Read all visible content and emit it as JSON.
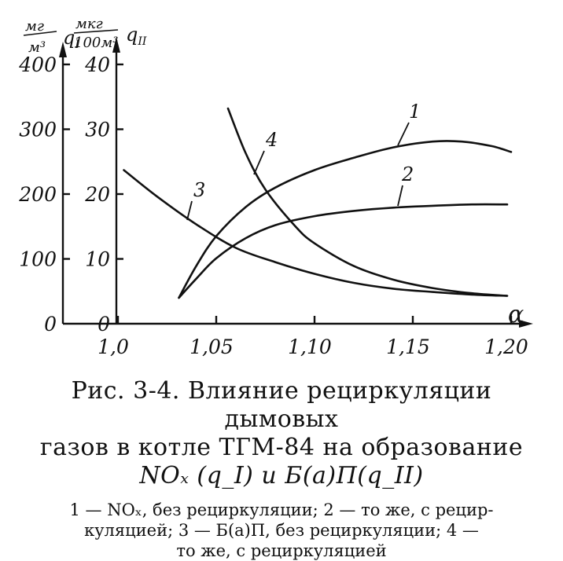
{
  "chart_data": {
    "type": "line",
    "xlabel": "α",
    "x_ticks": [
      "1,0",
      "1,05",
      "1,10",
      "1,15",
      "1,20"
    ],
    "x_tick_values": [
      1.0,
      1.05,
      1.1,
      1.15,
      1.2
    ],
    "xlim": [
      0.965,
      1.21
    ],
    "left_axis": {
      "unit_numerator": "мг",
      "unit_denominator": "м³",
      "label": "q_I",
      "ticks": [
        "0",
        "100",
        "200",
        "300",
        "400"
      ],
      "tick_values": [
        0,
        100,
        200,
        300,
        400
      ],
      "ylim": [
        0,
        400
      ]
    },
    "right_axis": {
      "unit_numerator": "мкг",
      "unit_denominator": "100м³",
      "label": "q_II",
      "ticks": [
        "0",
        "10",
        "20",
        "30",
        "40"
      ],
      "tick_values": [
        0,
        10,
        20,
        30,
        40
      ],
      "ylim": [
        0,
        40
      ]
    },
    "series": [
      {
        "name": "1",
        "axis": "left",
        "x": [
          1.031,
          1.04,
          1.05,
          1.065,
          1.08,
          1.1,
          1.12,
          1.14,
          1.16,
          1.175,
          1.19,
          1.2
        ],
        "y": [
          40,
          90,
          135,
          180,
          210,
          237,
          256,
          272,
          281,
          281,
          274,
          265
        ]
      },
      {
        "name": "2",
        "axis": "left",
        "x": [
          1.031,
          1.04,
          1.05,
          1.065,
          1.08,
          1.1,
          1.12,
          1.14,
          1.16,
          1.18,
          1.198
        ],
        "y": [
          40,
          70,
          101,
          132,
          152,
          166,
          174,
          179,
          182,
          184,
          184
        ]
      },
      {
        "name": "3",
        "axis": "right",
        "x": [
          1.003,
          1.02,
          1.04,
          1.06,
          1.08,
          1.1,
          1.12,
          1.14,
          1.16,
          1.18,
          1.198
        ],
        "y": [
          23.7,
          19.6,
          15.3,
          11.7,
          9.5,
          7.7,
          6.3,
          5.4,
          4.9,
          4.5,
          4.3
        ]
      },
      {
        "name": "4",
        "axis": "right",
        "x": [
          1.056,
          1.065,
          1.075,
          1.09,
          1.1,
          1.12,
          1.14,
          1.16,
          1.18,
          1.198
        ],
        "y": [
          33.2,
          26.3,
          20.7,
          15.1,
          12.4,
          8.9,
          6.8,
          5.5,
          4.7,
          4.3
        ]
      }
    ],
    "curve_labels": [
      "1",
      "2",
      "3",
      "4"
    ],
    "grid": false,
    "legend": "none"
  },
  "caption": {
    "title_line1": "Рис. 3-4. Влияние рециркуляции дымовых",
    "title_line2": "газов в котле ТГМ-84 на образование",
    "title_line3": "NOₓ (q_I) и Б(а)П(q_II)",
    "notes_line1": "1 — NOₓ, без рециркуляции; 2 — то же, с рецир-",
    "notes_line2": "куляцией; 3 — Б(а)П, без рециркуляции; 4 —",
    "notes_line3": "то же, с рециркуляцией"
  }
}
